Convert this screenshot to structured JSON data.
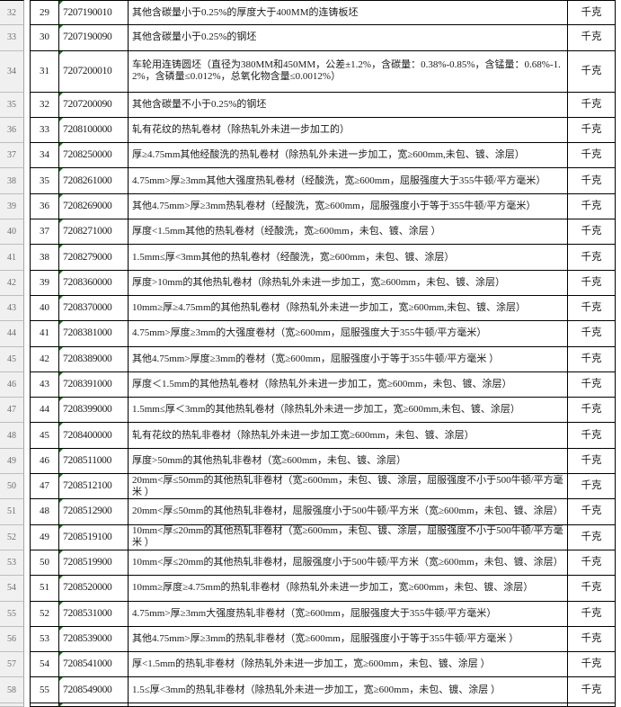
{
  "sheet": {
    "unit_label": "千克",
    "colors": {
      "grid_border": "#000000",
      "row_header_bg": "#f0f0f0",
      "row_header_text": "#6e6e6e",
      "text_marker_green": "#0a7d00",
      "cell_text": "#1c1c1c"
    },
    "table": {
      "rows": [
        {
          "row_no": "32",
          "seq": "29",
          "code": "7207190010",
          "desc": "其他含碳量小于0.25%的厚度大于400MM的连铸板坯",
          "unit": "千克"
        },
        {
          "row_no": "33",
          "seq": "30",
          "code": "7207190090",
          "desc": "其他含碳量小于0.25%的钢坯",
          "unit": "千克"
        },
        {
          "row_no": "34",
          "seq": "31",
          "code": "7207200010",
          "desc": "车轮用连铸圆坯（直径为380MM和450MM，公差±1.2%，含碳量：0.38%-0.85%，含锰量：0.68%-1.2%，含磷量≤0.012%，总氧化物含量≤0.0012%）",
          "unit": "千克",
          "tall": true
        },
        {
          "row_no": "35",
          "seq": "32",
          "code": "7207200090",
          "desc": "其他含碳量不小于0.25%的钢坯",
          "unit": "千克"
        },
        {
          "row_no": "36",
          "seq": "33",
          "code": "7208100000",
          "desc": "轧有花纹的热轧卷材（除热轧外未进一步加工的）",
          "unit": "千克"
        },
        {
          "row_no": "37",
          "seq": "34",
          "code": "7208250000",
          "desc": "厚≥4.75mm其他经酸洗的热轧卷材（除热轧外未进一步加工，宽≥600mm,未包、镀、涂层）",
          "unit": "千克"
        },
        {
          "row_no": "38",
          "seq": "35",
          "code": "7208261000",
          "desc": "4.75mm>厚≥3mm其他大强度热轧卷材（经酸洗，宽≥600mm，屈服强度大于355牛顿/平方毫米）",
          "unit": "千克"
        },
        {
          "row_no": "39",
          "seq": "36",
          "code": "7208269000",
          "desc": "其他4.75mm>厚≥3mm热轧卷材（经酸洗，宽≥600mm，屈服强度小于等于355牛顿/平方毫米）",
          "unit": "千克"
        },
        {
          "row_no": "40",
          "seq": "37",
          "code": "7208271000",
          "desc": "厚度<1.5mm其他的热轧卷材（经酸洗，宽≥600mm，未包、镀、涂层 ）",
          "unit": "千克"
        },
        {
          "row_no": "41",
          "seq": "38",
          "code": "7208279000",
          "desc": "1.5mm≤厚<3mm其他的热轧卷材（经酸洗，宽≥600mm，未包、镀、涂层）",
          "unit": "千克"
        },
        {
          "row_no": "42",
          "seq": "39",
          "code": "7208360000",
          "desc": "厚度>10mm的其他热轧卷材（除热轧外未进一步加工，宽≥600mm，未包、镀、涂层）",
          "unit": "千克"
        },
        {
          "row_no": "43",
          "seq": "40",
          "code": "7208370000",
          "desc": "10mm≥厚≥4.75mm的其他热轧卷材（除热轧外未进一步加工，宽≥600mm,未包、镀、涂层）",
          "unit": "千克"
        },
        {
          "row_no": "44",
          "seq": "41",
          "code": "7208381000",
          "desc": "4.75mm>厚度≥3mm的大强度卷材（宽≥600mm，屈服强度大于355牛顿/平方毫米）",
          "unit": "千克"
        },
        {
          "row_no": "45",
          "seq": "42",
          "code": "7208389000",
          "desc": "其他4.75mm>厚度≥3mm的卷材（宽≥600mm，屈服强度小于等于355牛顿/平方毫米 ）",
          "unit": "千克"
        },
        {
          "row_no": "46",
          "seq": "43",
          "code": "7208391000",
          "desc": "厚度＜1.5mm的其他热轧卷材（除热轧外未进一步加工，宽≥600mm，未包、镀、涂层）",
          "unit": "千克"
        },
        {
          "row_no": "47",
          "seq": "44",
          "code": "7208399000",
          "desc": "1.5mm≤厚＜3mm的其他热轧卷材（除热轧外未进一步加工，宽≥600mm,未包、镀、涂层）",
          "unit": "千克"
        },
        {
          "row_no": "48",
          "seq": "45",
          "code": "7208400000",
          "desc": "轧有花纹的热轧非卷材（除热轧外未进一步加工宽≥600mm，未包、镀、涂层）",
          "unit": "千克"
        },
        {
          "row_no": "49",
          "seq": "46",
          "code": "7208511000",
          "desc": "厚度>50mm的其他热轧非卷材（宽≥600mm，未包、镀、涂层）",
          "unit": "千克"
        },
        {
          "row_no": "50",
          "seq": "47",
          "code": "7208512100",
          "desc": "20mm<厚≤50mm的其他热轧非卷材（宽≥600mm，未包、镀、涂层，屈服强度不小于500牛顿/平方毫米 ）",
          "unit": "千克"
        },
        {
          "row_no": "51",
          "seq": "48",
          "code": "7208512900",
          "desc": "20mm<厚≤50mm的其他热轧非卷材，屈服强度小于500牛顿/平方米（宽≥600mm，未包、镀、涂层）",
          "unit": "千克"
        },
        {
          "row_no": "52",
          "seq": "49",
          "code": "7208519100",
          "desc": "10mm<厚≤20mm的其他热轧非卷材（宽≥600mm，未包、镀、涂层，屈服强度不小于500牛顿/平方毫米  ）",
          "unit": "千克"
        },
        {
          "row_no": "53",
          "seq": "50",
          "code": "7208519900",
          "desc": "10mm<厚≤20mm的其他热轧非卷材，屈服强度小于500牛顿/平方米（宽≥600mm，未包、镀、涂层）",
          "unit": "千克"
        },
        {
          "row_no": "54",
          "seq": "51",
          "code": "7208520000",
          "desc": "10mm≥厚度≥4.75mm的热轧非卷材（除热轧外未进一步加工，宽≥600mm，未包、镀、涂层）",
          "unit": "千克"
        },
        {
          "row_no": "55",
          "seq": "52",
          "code": "7208531000",
          "desc": "4.75mm>厚≥3mm大强度热轧非卷材（宽≥600mm，屈服强度大于355牛顿/平方毫米）",
          "unit": "千克"
        },
        {
          "row_no": "56",
          "seq": "53",
          "code": "7208539000",
          "desc": "其他4.75mm>厚≥3mm的热轧非卷材（宽≥600mm，屈服强度小于等于355牛顿/平方毫米 ）",
          "unit": "千克"
        },
        {
          "row_no": "57",
          "seq": "54",
          "code": "7208541000",
          "desc": "厚<1.5mm的热轧非卷材（除热轧外未进一步加工，宽≥600mm，未包、镀、涂层 ）",
          "unit": "千克"
        },
        {
          "row_no": "58",
          "seq": "55",
          "code": "7208549000",
          "desc": "1.5≤厚<3mm的热轧非卷材（除热轧外未进一步加工，宽≥600mm，未包、镀、涂层 ）",
          "unit": "千克"
        }
      ]
    }
  }
}
